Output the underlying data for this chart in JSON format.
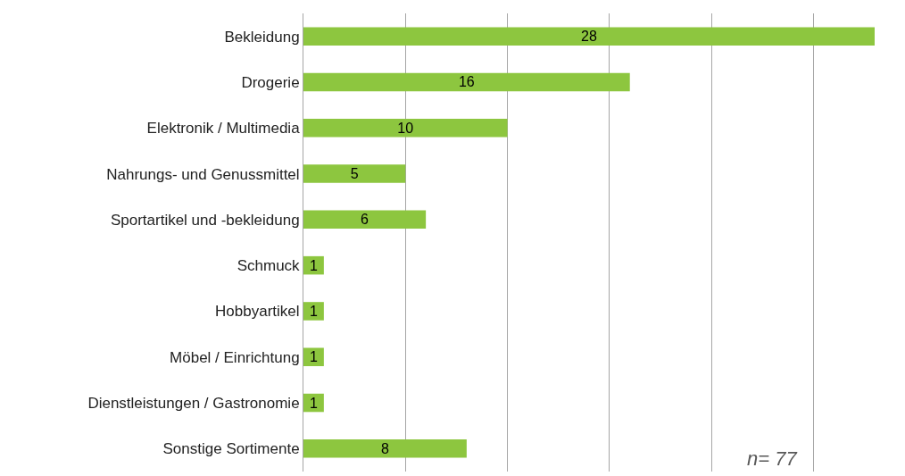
{
  "chart_data": {
    "type": "bar",
    "orientation": "horizontal",
    "categories": [
      "Bekleidung",
      "Drogerie",
      "Elektronik / Multimedia",
      "Nahrungs- und Genussmittel",
      "Sportartikel und -bekleidung",
      "Schmuck",
      "Hobbyartikel",
      "Möbel / Einrichtung",
      "Dienstleistungen / Gastronomie",
      "Sonstige Sortimente"
    ],
    "values": [
      28,
      16,
      10,
      5,
      6,
      1,
      1,
      1,
      1,
      8
    ],
    "color": "#8dc63f",
    "xlim": [
      0,
      28
    ],
    "xticks": [
      {
        "value": 0,
        "label": null
      },
      {
        "value": 5,
        "label": null
      },
      {
        "value": 10,
        "label": null
      },
      {
        "value": 15,
        "label": null
      },
      {
        "value": 20,
        "label": null
      },
      {
        "value": 25,
        "label": null
      }
    ],
    "grid": "x",
    "tick_labels": "y",
    "data_labels": true,
    "legend": false,
    "annotations": [
      {
        "text": "n= 77"
      }
    ]
  }
}
